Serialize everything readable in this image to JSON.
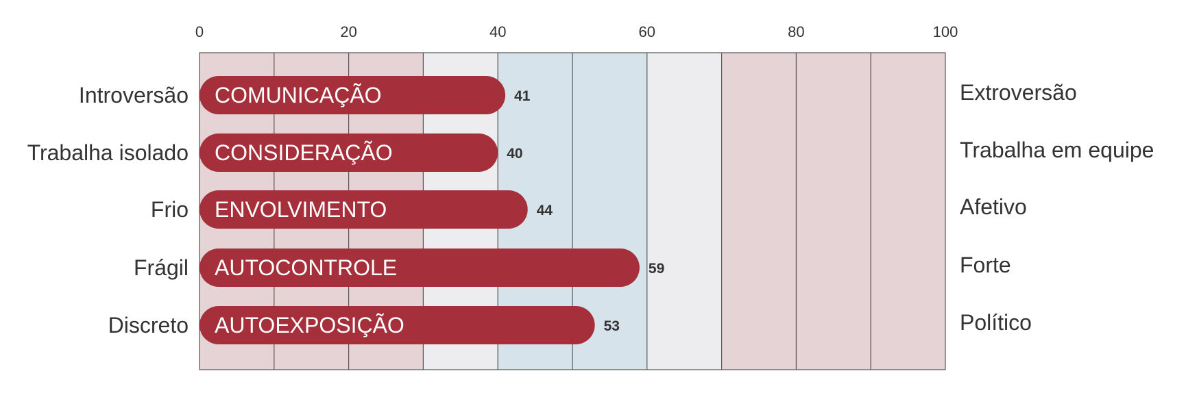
{
  "chart_data": {
    "type": "bar",
    "orientation": "horizontal",
    "xlim": [
      0,
      100
    ],
    "x_ticks": [
      "0",
      "20",
      "40",
      "60",
      "80",
      "100"
    ],
    "bands": [
      {
        "from": 0,
        "to": 30,
        "color": "#e6d3d5"
      },
      {
        "from": 30,
        "to": 40,
        "color": "#ededef"
      },
      {
        "from": 40,
        "to": 60,
        "color": "#d6e3ea"
      },
      {
        "from": 60,
        "to": 70,
        "color": "#ededef"
      },
      {
        "from": 70,
        "to": 100,
        "color": "#e6d3d5"
      }
    ],
    "bar_color": "#a52f3a",
    "categories": [
      {
        "name": "COMUNICAÇÃO",
        "left": "Introversão",
        "right": "Extroversão",
        "value": 41
      },
      {
        "name": "CONSIDERAÇÃO",
        "left": "Trabalha isolado",
        "right": "Trabalha em equipe",
        "value": 40
      },
      {
        "name": "ENVOLVIMENTO",
        "left": "Frio",
        "right": "Afetivo",
        "value": 44
      },
      {
        "name": "AUTOCONTROLE",
        "left": "Frágil",
        "right": "Forte",
        "value": 59
      },
      {
        "name": "AUTOEXPOSIÇÃO",
        "left": "Discreto",
        "right": "Político",
        "value": 53
      }
    ]
  }
}
